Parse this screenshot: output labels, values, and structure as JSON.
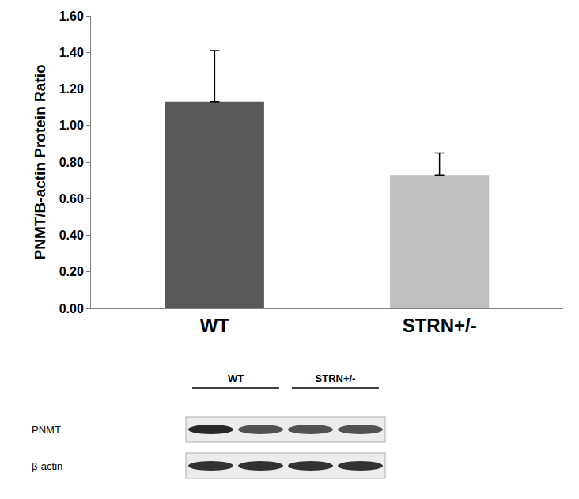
{
  "chart_data": {
    "type": "bar",
    "y_label": "PNMT/B-actin Protein Ratio",
    "categories": [
      "WT",
      "STRN+/-"
    ],
    "values": [
      1.13,
      0.73
    ],
    "errors": [
      0.28,
      0.12
    ],
    "colors": [
      "#595959",
      "#bfbfbf"
    ],
    "ylim": [
      0,
      1.6
    ],
    "yticks": [
      {
        "value": 0,
        "label": "0.00"
      },
      {
        "value": 0.2,
        "label": "0.20"
      },
      {
        "value": 0.4,
        "label": "0.40"
      },
      {
        "value": 0.6,
        "label": "0.60"
      },
      {
        "value": 0.8,
        "label": "0.80"
      },
      {
        "value": 1.0,
        "label": "1.00"
      },
      {
        "value": 1.2,
        "label": "1.20"
      },
      {
        "value": 1.4,
        "label": "1.40"
      },
      {
        "value": 1.6,
        "label": "1.60"
      }
    ],
    "grid": false
  },
  "blot": {
    "lanes": [
      "WT",
      "STRN+/-"
    ],
    "rows": [
      "PNMT",
      "β-actin"
    ]
  }
}
